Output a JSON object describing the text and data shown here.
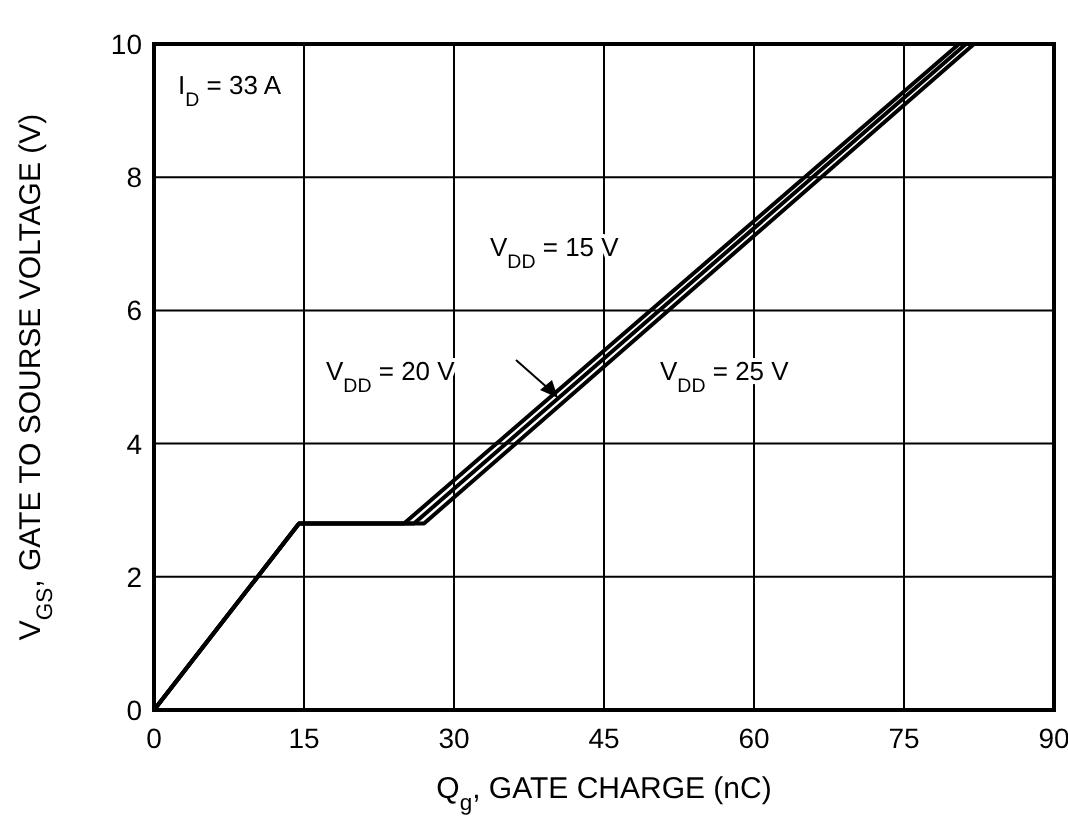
{
  "chart_data": {
    "type": "line",
    "xlabel": "Q$_{g}$, GATE CHARGE (nC)",
    "ylabel": "V$_{GS}$, GATE TO SOURSE VOLTAGE (V)",
    "annotations": [
      "I$_{D}$ = 33 A"
    ],
    "xlim": [
      0,
      90
    ],
    "xticks": [
      0,
      15,
      30,
      45,
      60,
      75,
      90
    ],
    "ylim": [
      0,
      10
    ],
    "yticks": [
      0,
      2,
      4,
      6,
      8,
      10
    ],
    "grid": true,
    "marker": "none",
    "line_style": "solid",
    "series": [
      {
        "name": "V$_{DD}$ = 15 V",
        "color": "#000000",
        "x": [
          0,
          14.5,
          25,
          80.5
        ],
        "values": [
          0,
          2.8,
          2.8,
          10
        ]
      },
      {
        "name": "V$_{DD}$ = 20 V",
        "color": "#000000",
        "x": [
          0,
          14.5,
          26,
          81.2
        ],
        "values": [
          0,
          2.8,
          2.8,
          10
        ]
      },
      {
        "name": "V$_{DD}$ = 25 V",
        "color": "#000000",
        "x": [
          0,
          14.5,
          27,
          82
        ],
        "values": [
          0,
          2.8,
          2.8,
          10
        ]
      }
    ]
  }
}
